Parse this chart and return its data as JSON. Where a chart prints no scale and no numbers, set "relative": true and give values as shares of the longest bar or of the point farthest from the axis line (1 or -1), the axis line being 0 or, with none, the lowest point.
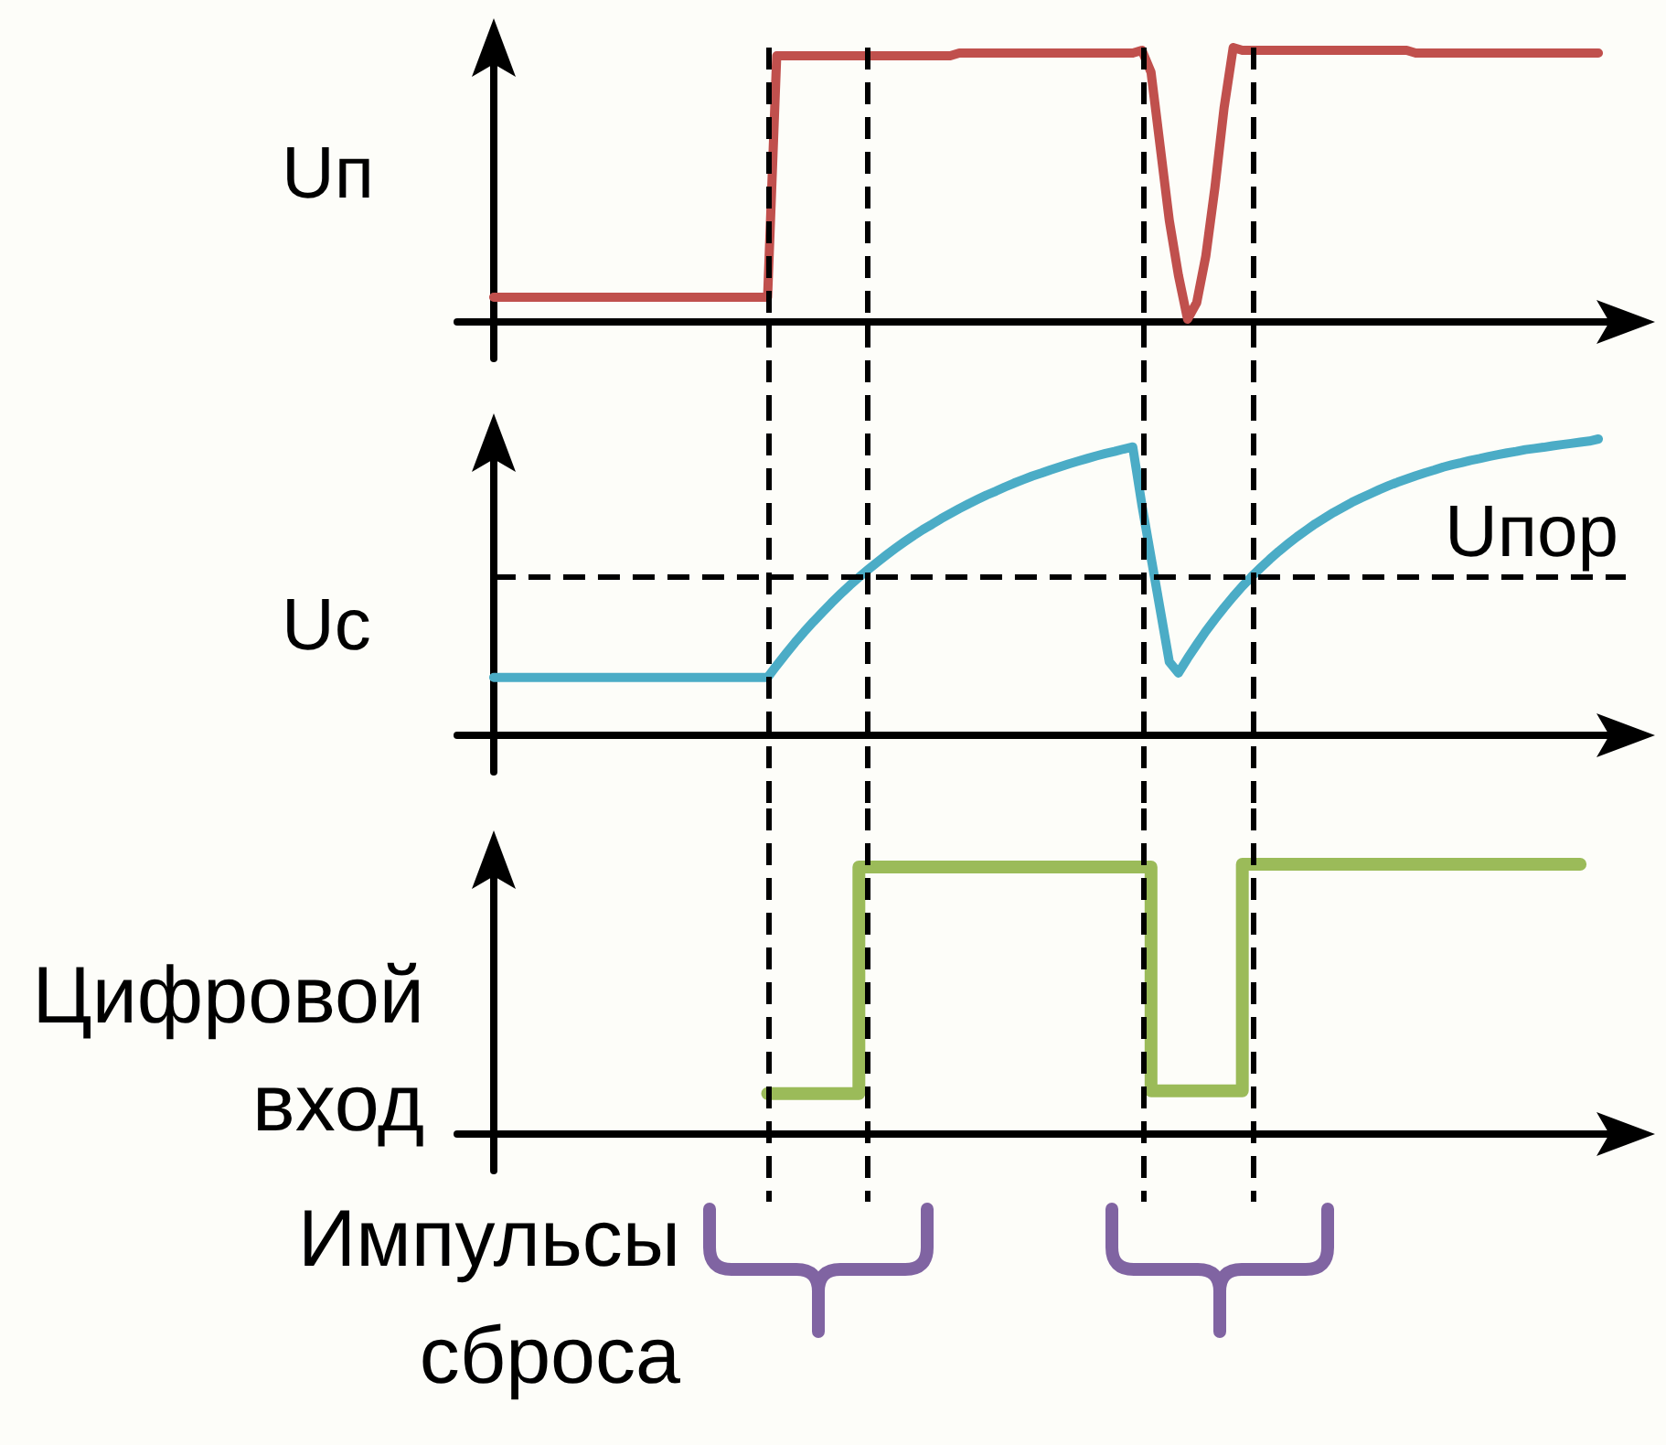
{
  "chart_data": [
    {
      "type": "line",
      "ylabel": "Uп",
      "relative": true,
      "categories": [
        null,
        null,
        null,
        null,
        null,
        null,
        null,
        null,
        null,
        null,
        null,
        null,
        null,
        null,
        null,
        null,
        null,
        null,
        null,
        null,
        null,
        null,
        null,
        null,
        null,
        null,
        null,
        null,
        null,
        null,
        null,
        null,
        null,
        null,
        null,
        null,
        null,
        null,
        null,
        null,
        null,
        null,
        null,
        null,
        null,
        null,
        null,
        null,
        null,
        null,
        null,
        null,
        null,
        null,
        null,
        null,
        null,
        null,
        null,
        null,
        null,
        null,
        null,
        null,
        null,
        null,
        null,
        null,
        null,
        null,
        null,
        null,
        null,
        null,
        null,
        null,
        null,
        null,
        null,
        null,
        null,
        null,
        null,
        null,
        null,
        null,
        null,
        null,
        null,
        null,
        null,
        null,
        null,
        null,
        null,
        null,
        null,
        null,
        null,
        null,
        null,
        null,
        null,
        null,
        null,
        null,
        null,
        null,
        null,
        null,
        null,
        null,
        null,
        null,
        null,
        null,
        null,
        null,
        null,
        null,
        null,
        null
      ],
      "series": [
        {
          "color": "#c0504d",
          "values": [
            0.09,
            0.09,
            0.09,
            0.09,
            0.09,
            0.09,
            0.09,
            0.09,
            0.09,
            0.09,
            0.09,
            0.09,
            0.09,
            0.09,
            0.09,
            0.09,
            0.09,
            0.09,
            0.09,
            0.09,
            0.09,
            0.09,
            0.09,
            0.09,
            0.09,
            0.09,
            0.09,
            0.09,
            0.09,
            0.09,
            0.09,
            0.97,
            0.97,
            0.97,
            0.97,
            0.97,
            0.97,
            0.97,
            0.97,
            0.97,
            0.97,
            0.97,
            0.97,
            0.97,
            0.97,
            0.97,
            0.97,
            0.97,
            0.97,
            0.97,
            0.97,
            0.98,
            0.98,
            0.98,
            0.98,
            0.98,
            0.98,
            0.98,
            0.98,
            0.98,
            0.98,
            0.98,
            0.98,
            0.98,
            0.98,
            0.98,
            0.98,
            0.98,
            0.98,
            0.98,
            0.98,
            0.99,
            0.91,
            0.64,
            0.37,
            0.17,
            0.01,
            0.07,
            0.24,
            0.49,
            0.78,
            1.0,
            0.99,
            0.99,
            0.99,
            0.99,
            0.99,
            0.99,
            0.99,
            0.99,
            0.99,
            0.99,
            0.99,
            0.99,
            0.99,
            0.99,
            0.99,
            0.99,
            0.99,
            0.99,
            0.99,
            0.98,
            0.98,
            0.98,
            0.98,
            0.98,
            0.98,
            0.98,
            0.98,
            0.98,
            0.98,
            0.98,
            0.98,
            0.98,
            0.98,
            0.98,
            0.98,
            0.98,
            0.98,
            0.98,
            0.98,
            0.98
          ]
        }
      ]
    },
    {
      "type": "line",
      "ylabel": "Uс",
      "relative": true,
      "categories": [
        null,
        null,
        null,
        null,
        null,
        null,
        null,
        null,
        null,
        null,
        null,
        null,
        null,
        null,
        null,
        null,
        null,
        null,
        null,
        null,
        null,
        null,
        null,
        null,
        null,
        null,
        null,
        null,
        null,
        null,
        null,
        null,
        null,
        null,
        null,
        null,
        null,
        null,
        null,
        null,
        null,
        null,
        null,
        null,
        null,
        null,
        null,
        null,
        null,
        null,
        null,
        null,
        null,
        null,
        null,
        null,
        null,
        null,
        null,
        null,
        null,
        null,
        null,
        null,
        null,
        null,
        null,
        null,
        null,
        null,
        null,
        null,
        null,
        null,
        null,
        null,
        null,
        null,
        null,
        null,
        null,
        null,
        null,
        null,
        null,
        null,
        null,
        null,
        null,
        null,
        null,
        null,
        null,
        null,
        null,
        null,
        null,
        null,
        null,
        null,
        null,
        null,
        null,
        null,
        null,
        null,
        null,
        null,
        null,
        null,
        null,
        null,
        null,
        null,
        null,
        null,
        null,
        null,
        null,
        null,
        null,
        null
      ],
      "series": [
        {
          "color": "#4bacc6",
          "values": [
            0.195,
            0.195,
            0.195,
            0.195,
            0.195,
            0.195,
            0.195,
            0.195,
            0.195,
            0.195,
            0.195,
            0.195,
            0.195,
            0.195,
            0.195,
            0.195,
            0.195,
            0.195,
            0.195,
            0.195,
            0.195,
            0.195,
            0.195,
            0.195,
            0.195,
            0.195,
            0.195,
            0.195,
            0.195,
            0.195,
            0.195,
            0.236,
            0.275,
            0.313,
            0.349,
            0.383,
            0.415,
            0.447,
            0.477,
            0.506,
            0.533,
            0.559,
            0.584,
            0.608,
            0.631,
            0.653,
            0.674,
            0.694,
            0.712,
            0.731,
            0.748,
            0.765,
            0.781,
            0.796,
            0.811,
            0.824,
            0.838,
            0.851,
            0.863,
            0.875,
            0.885,
            0.896,
            0.906,
            0.916,
            0.925,
            0.934,
            0.943,
            0.951,
            0.958,
            0.966,
            0.973,
            0.777,
            0.601,
            0.425,
            0.248,
            0.21,
            0.26,
            0.306,
            0.351,
            0.392,
            0.431,
            0.468,
            0.503,
            0.535,
            0.565,
            0.594,
            0.621,
            0.646,
            0.67,
            0.692,
            0.714,
            0.733,
            0.752,
            0.769,
            0.786,
            0.801,
            0.815,
            0.829,
            0.842,
            0.854,
            0.865,
            0.876,
            0.886,
            0.895,
            0.905,
            0.913,
            0.92,
            0.928,
            0.934,
            0.941,
            0.947,
            0.953,
            0.958,
            0.964,
            0.968,
            0.972,
            0.977,
            0.981,
            0.985,
            0.989,
            0.993,
            1.0
          ]
        }
      ],
      "ref_lines": [
        {
          "axis": "y",
          "value": 0.536,
          "label": "Uпор",
          "line_style": "dashed",
          "color": "#000000"
        }
      ]
    },
    {
      "type": "step",
      "ylabel": "Цифровой вход",
      "relative": true,
      "categories": [
        null,
        null,
        null,
        null,
        null,
        null,
        null,
        null,
        null,
        null,
        null,
        null,
        null,
        null,
        null,
        null,
        null,
        null,
        null,
        null,
        null,
        null,
        null,
        null,
        null,
        null,
        null,
        null,
        null,
        null,
        null,
        null,
        null,
        null,
        null,
        null,
        null,
        null,
        null,
        null,
        null,
        null,
        null,
        null,
        null,
        null,
        null,
        null,
        null,
        null,
        null,
        null,
        null,
        null,
        null,
        null,
        null,
        null,
        null,
        null,
        null,
        null,
        null,
        null,
        null,
        null,
        null,
        null,
        null,
        null,
        null,
        null,
        null,
        null,
        null,
        null,
        null,
        null,
        null,
        null,
        null,
        null,
        null,
        null,
        null,
        null,
        null,
        null,
        null,
        null,
        null,
        null,
        null,
        null,
        null,
        null,
        null,
        null,
        null,
        null,
        null,
        null,
        null,
        null,
        null,
        null,
        null,
        null,
        null,
        null,
        null,
        null,
        null,
        null,
        null,
        null,
        null,
        null,
        null,
        null,
        null,
        null
      ],
      "series": [
        {
          "color": "#9bbb59",
          "values": [
            null,
            null,
            null,
            null,
            null,
            null,
            null,
            null,
            null,
            null,
            null,
            null,
            null,
            null,
            null,
            null,
            null,
            null,
            null,
            null,
            null,
            null,
            null,
            null,
            null,
            null,
            null,
            null,
            null,
            null,
            0.15,
            0.15,
            0.15,
            0.15,
            0.15,
            0.15,
            0.15,
            0.15,
            0.15,
            0.15,
            0.99,
            0.99,
            0.99,
            0.99,
            0.99,
            0.99,
            0.99,
            0.99,
            0.99,
            0.99,
            0.99,
            0.99,
            0.99,
            0.99,
            0.99,
            0.99,
            0.99,
            0.99,
            0.99,
            0.99,
            0.99,
            0.99,
            0.99,
            0.99,
            0.99,
            0.99,
            0.99,
            0.99,
            0.99,
            0.99,
            0.99,
            0.99,
            0.16,
            0.16,
            0.16,
            0.16,
            0.16,
            0.16,
            0.16,
            0.16,
            0.16,
            0.16,
            1.0,
            1.0,
            1.0,
            1.0,
            1.0,
            1.0,
            1.0,
            1.0,
            1.0,
            1.0,
            1.0,
            1.0,
            1.0,
            1.0,
            1.0,
            1.0,
            1.0,
            1.0,
            1.0,
            1.0,
            1.0,
            1.0,
            1.0,
            1.0,
            1.0,
            1.0,
            1.0,
            1.0,
            1.0,
            1.0,
            1.0,
            1.0,
            1.0,
            1.0,
            1.0,
            1.0,
            1.0,
            1.0,
            null,
            null
          ]
        }
      ],
      "annotations": [
        "Импульсы сброса"
      ]
    }
  ]
}
